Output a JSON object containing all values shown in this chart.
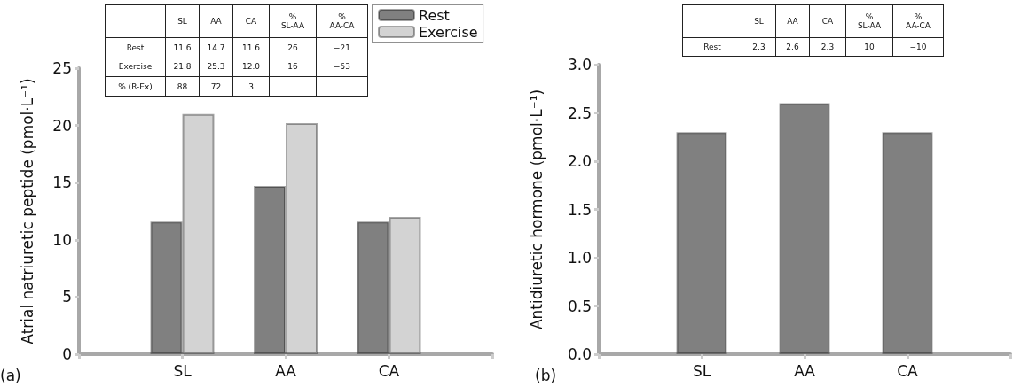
{
  "chart_data": [
    {
      "type": "bar",
      "ylabel": "Atrial natriuretic peptide (pmol·L⁻¹)",
      "categories": [
        null,
        "SL",
        "AA",
        "CA",
        null
      ],
      "series": [
        {
          "name": "Rest",
          "color": "#808080",
          "values": [
            null,
            11.6,
            14.7,
            11.6,
            null
          ]
        },
        {
          "name": "Exercise",
          "color": "#d3d3d3",
          "values": [
            null,
            21.0,
            20.2,
            12.0,
            null
          ]
        }
      ],
      "ylim": [
        0,
        25
      ],
      "yticks": [
        0,
        5,
        10,
        15,
        20,
        25
      ],
      "grid": false,
      "legend": "top right",
      "annotations": [
        "(a)",
        "\tSL\tAA\tCA\t%\nSL-AA\t%\nAA-CA",
        "Rest\t11.6\t14.7\t11.6\t26\t−21",
        "Exercise\t21.8\t25.3\t12.0\t16\t−53",
        "% (R-Ex)\t88\t72\t3\t\t"
      ]
    },
    {
      "type": "bar",
      "ylabel": "Antidiuretic hormone (pmol·L⁻¹)",
      "categories": [
        null,
        "SL",
        "AA",
        "CA",
        null
      ],
      "values": [
        null,
        2.3,
        2.6,
        2.3,
        null
      ],
      "color": "#808080",
      "ylim": [
        0,
        3
      ],
      "yticks": [
        {
          "value": 0,
          "label": "0.0"
        },
        {
          "value": 0.5,
          "label": "0.5"
        },
        {
          "value": 1,
          "label": "1.0"
        },
        {
          "value": 1.5,
          "label": "1.5"
        },
        {
          "value": 2,
          "label": "2.0"
        },
        {
          "value": 2.5,
          "label": "2.5"
        },
        {
          "value": 3,
          "label": "3.0"
        }
      ],
      "grid": false,
      "annotations": [
        "(b)",
        "\tSL\tAA\tCA\t%\nSL-AA\t%\nAA-CA",
        "Rest\t2.3\t2.6\t2.3\t10\t−10"
      ]
    }
  ]
}
